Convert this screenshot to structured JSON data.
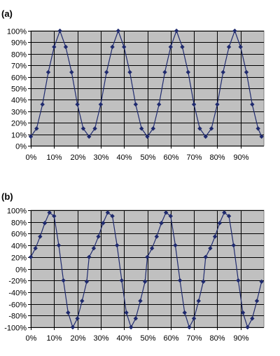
{
  "chart_data": [
    {
      "type": "line",
      "panel_label": "(a)",
      "title": "",
      "xlabel": "",
      "ylabel": "",
      "xlim": [
        0,
        100
      ],
      "ylim": [
        0,
        100
      ],
      "x_ticks": [
        "0%",
        "10%",
        "20%",
        "30%",
        "40%",
        "50%",
        "60%",
        "70%",
        "80%",
        "90%"
      ],
      "y_ticks": [
        "0%",
        "10%",
        "20%",
        "30%",
        "40%",
        "50%",
        "60%",
        "70%",
        "80%",
        "90%",
        "100%"
      ],
      "grid": true,
      "plot_background": "#c0c0c0",
      "marker": "diamond",
      "series": [
        {
          "color": "#1f2a6e",
          "x": [
            0,
            2.5,
            5,
            7.5,
            10,
            12.5,
            15,
            17.5,
            20,
            22.5,
            25,
            27.5,
            30,
            32.5,
            35,
            37.5,
            40,
            42.5,
            45,
            47.5,
            50,
            52.5,
            55,
            57.5,
            60,
            62.5,
            65,
            67.5,
            70,
            72.5,
            75,
            77.5,
            80,
            82.5,
            85,
            87.5,
            90,
            92.5,
            95,
            97.5,
            99
          ],
          "y": [
            8,
            15,
            36,
            64,
            86,
            100,
            86,
            64,
            36,
            15,
            8,
            15,
            36,
            64,
            86,
            100,
            86,
            64,
            36,
            15,
            8,
            15,
            36,
            64,
            86,
            100,
            86,
            64,
            36,
            15,
            8,
            15,
            36,
            64,
            86,
            100,
            86,
            64,
            36,
            15,
            8
          ]
        }
      ]
    },
    {
      "type": "line",
      "panel_label": "(b)",
      "title": "",
      "xlabel": "",
      "ylabel": "",
      "xlim": [
        0,
        100
      ],
      "ylim": [
        -100,
        100
      ],
      "x_ticks": [
        "0%",
        "10%",
        "20%",
        "30%",
        "40%",
        "50%",
        "60%",
        "70%",
        "80%",
        "90%"
      ],
      "y_ticks": [
        "100%",
        "80%",
        "60%",
        "40%",
        "20%",
        "0%",
        "-20%",
        "-40%",
        "-60%",
        "-80%",
        "-100%"
      ],
      "grid": true,
      "plot_background": "#c0c0c0",
      "marker": "diamond",
      "series": [
        {
          "color": "#1f2a6e",
          "x": [
            0,
            2,
            4,
            6,
            8,
            10,
            12,
            14,
            16,
            18,
            20,
            22,
            24,
            25,
            27,
            29,
            31,
            33,
            35,
            37,
            39,
            41,
            43,
            45,
            47,
            49,
            50,
            52,
            54,
            56,
            58,
            60,
            62,
            64,
            66,
            68,
            70,
            72,
            74,
            75,
            77,
            79,
            81,
            83,
            85,
            87,
            89,
            91,
            93,
            95,
            97,
            99
          ],
          "y": [
            20,
            35,
            55,
            78,
            96,
            90,
            40,
            -20,
            -75,
            -100,
            -85,
            -55,
            -22,
            20,
            35,
            55,
            78,
            96,
            90,
            40,
            -20,
            -75,
            -100,
            -85,
            -55,
            -22,
            20,
            35,
            55,
            78,
            96,
            90,
            40,
            -20,
            -75,
            -100,
            -85,
            -55,
            -22,
            20,
            35,
            55,
            78,
            96,
            90,
            40,
            -20,
            -75,
            -100,
            -85,
            -55,
            -22
          ]
        }
      ]
    }
  ]
}
